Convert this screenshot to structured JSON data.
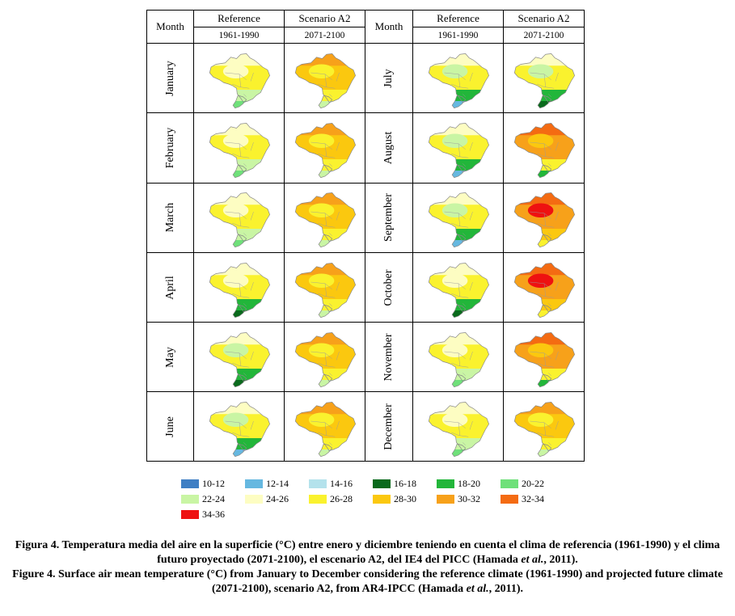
{
  "header": {
    "month_label": "Month",
    "reference_label": "Reference",
    "scenario_label": "Scenario A2",
    "reference_period": "1961-1990",
    "scenario_period": "2071-2100"
  },
  "rows": [
    {
      "left": {
        "month": "January",
        "ref": "light",
        "a2": "warm"
      },
      "right": {
        "month": "July",
        "ref": "cold",
        "a2": "cool"
      }
    },
    {
      "left": {
        "month": "February",
        "ref": "light",
        "a2": "warm"
      },
      "right": {
        "month": "August",
        "ref": "cold",
        "a2": "hot"
      }
    },
    {
      "left": {
        "month": "March",
        "ref": "light",
        "a2": "warm"
      },
      "right": {
        "month": "September",
        "ref": "cold",
        "a2": "hottest"
      }
    },
    {
      "left": {
        "month": "April",
        "ref": "green",
        "a2": "warm"
      },
      "right": {
        "month": "October",
        "ref": "green",
        "a2": "hotter"
      }
    },
    {
      "left": {
        "month": "May",
        "ref": "cool",
        "a2": "warm"
      },
      "right": {
        "month": "November",
        "ref": "light",
        "a2": "hot"
      }
    },
    {
      "left": {
        "month": "June",
        "ref": "cold",
        "a2": "warm"
      },
      "right": {
        "month": "December",
        "ref": "light",
        "a2": "warm"
      }
    }
  ],
  "legend": [
    {
      "label": "10-12",
      "color": "#3f7fc4"
    },
    {
      "label": "12-14",
      "color": "#66b8e0"
    },
    {
      "label": "14-16",
      "color": "#b4e2ec"
    },
    {
      "label": "16-18",
      "color": "#0a6a1c"
    },
    {
      "label": "18-20",
      "color": "#22b63a"
    },
    {
      "label": "20-22",
      "color": "#6fe07a"
    },
    {
      "label": "22-24",
      "color": "#c9f5a4"
    },
    {
      "label": "24-26",
      "color": "#fdfdc2"
    },
    {
      "label": "26-28",
      "color": "#faf22e"
    },
    {
      "label": "28-30",
      "color": "#fbc80f"
    },
    {
      "label": "30-32",
      "color": "#f7a11a"
    },
    {
      "label": "32-34",
      "color": "#f46b12"
    },
    {
      "label": "34-36",
      "color": "#ee1111"
    }
  ],
  "caption": {
    "es_lead": "Figura 4.",
    "es_text": " Temperatura media del aire en la superficie (°C) entre enero y diciembre teniendo en cuenta el clima de referencia (1961-1990) y el clima futuro proyectado (2071-2100), el escenario A2, del IE4 del PICC (Hamada ",
    "es_etal": "et al.",
    "es_end": ", 2011).",
    "en_lead": "Figure 4.",
    "en_text": " Surface air mean temperature (°C) from January to December considering the reference climate (1961-1990) and projected future climate (2071-2100), scenario A2, from AR4-IPCC (Hamada ",
    "en_etal": "et al.",
    "en_end": ", 2011)."
  },
  "palettes": {
    "light": {
      "base": "#faf22e",
      "n": "#fdfdc2",
      "s": "#c9f5a4",
      "tip": "#6fe07a",
      "blob": "#fdfdc2"
    },
    "green": {
      "base": "#faf22e",
      "n": "#fdfdc2",
      "s": "#22b63a",
      "tip": "#0a6a1c",
      "blob": "#fdfdc2"
    },
    "cool": {
      "base": "#faf22e",
      "n": "#fdfdc2",
      "s": "#22b63a",
      "tip": "#0a6a1c",
      "blob": "#c9f5a4"
    },
    "cold": {
      "base": "#faf22e",
      "n": "#fdfdc2",
      "s": "#22b63a",
      "tip": "#66b8e0",
      "blob": "#c9f5a4"
    },
    "warm": {
      "base": "#fbc80f",
      "n": "#f7a11a",
      "s": "#faf22e",
      "tip": "#c9f5a4",
      "blob": "#faf22e"
    },
    "hot": {
      "base": "#f7a11a",
      "n": "#f46b12",
      "s": "#faf22e",
      "tip": "#22b63a",
      "blob": "#fbc80f"
    },
    "hotter": {
      "base": "#f7a11a",
      "n": "#f46b12",
      "s": "#fbc80f",
      "tip": "#faf22e",
      "blob": "#ee1111"
    },
    "hottest": {
      "base": "#f7a11a",
      "n": "#f46b12",
      "s": "#fbc80f",
      "tip": "#faf22e",
      "blob": "#ee1111"
    }
  }
}
